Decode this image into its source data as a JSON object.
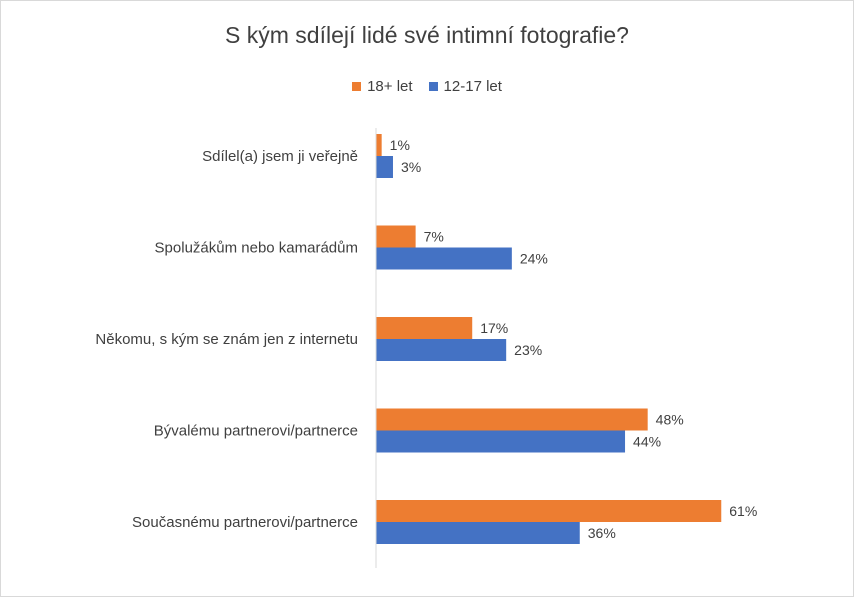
{
  "chart_data": {
    "type": "bar",
    "orientation": "horizontal",
    "title": "S kým sdílejí  lidé své intimní fotografie?",
    "categories": [
      "Sdílel(a) jsem ji veřejně",
      "Spolužákům nebo kamarádům",
      "Někomu, s kým se znám jen z internetu",
      "Bývalému partnerovi/partnerce",
      "Současnému partnerovi/partnerce"
    ],
    "series": [
      {
        "name": "18+ let",
        "color": "#ED7D31",
        "values": [
          1,
          7,
          17,
          48,
          61
        ],
        "labels": [
          "1%",
          "7%",
          "17%",
          "48%",
          "61%"
        ]
      },
      {
        "name": "12-17 let",
        "color": "#4472C4",
        "values": [
          3,
          24,
          23,
          44,
          36
        ],
        "labels": [
          "3%",
          "24%",
          "23%",
          "44%",
          "36%"
        ]
      }
    ],
    "legend_position": "top",
    "grid": false
  }
}
